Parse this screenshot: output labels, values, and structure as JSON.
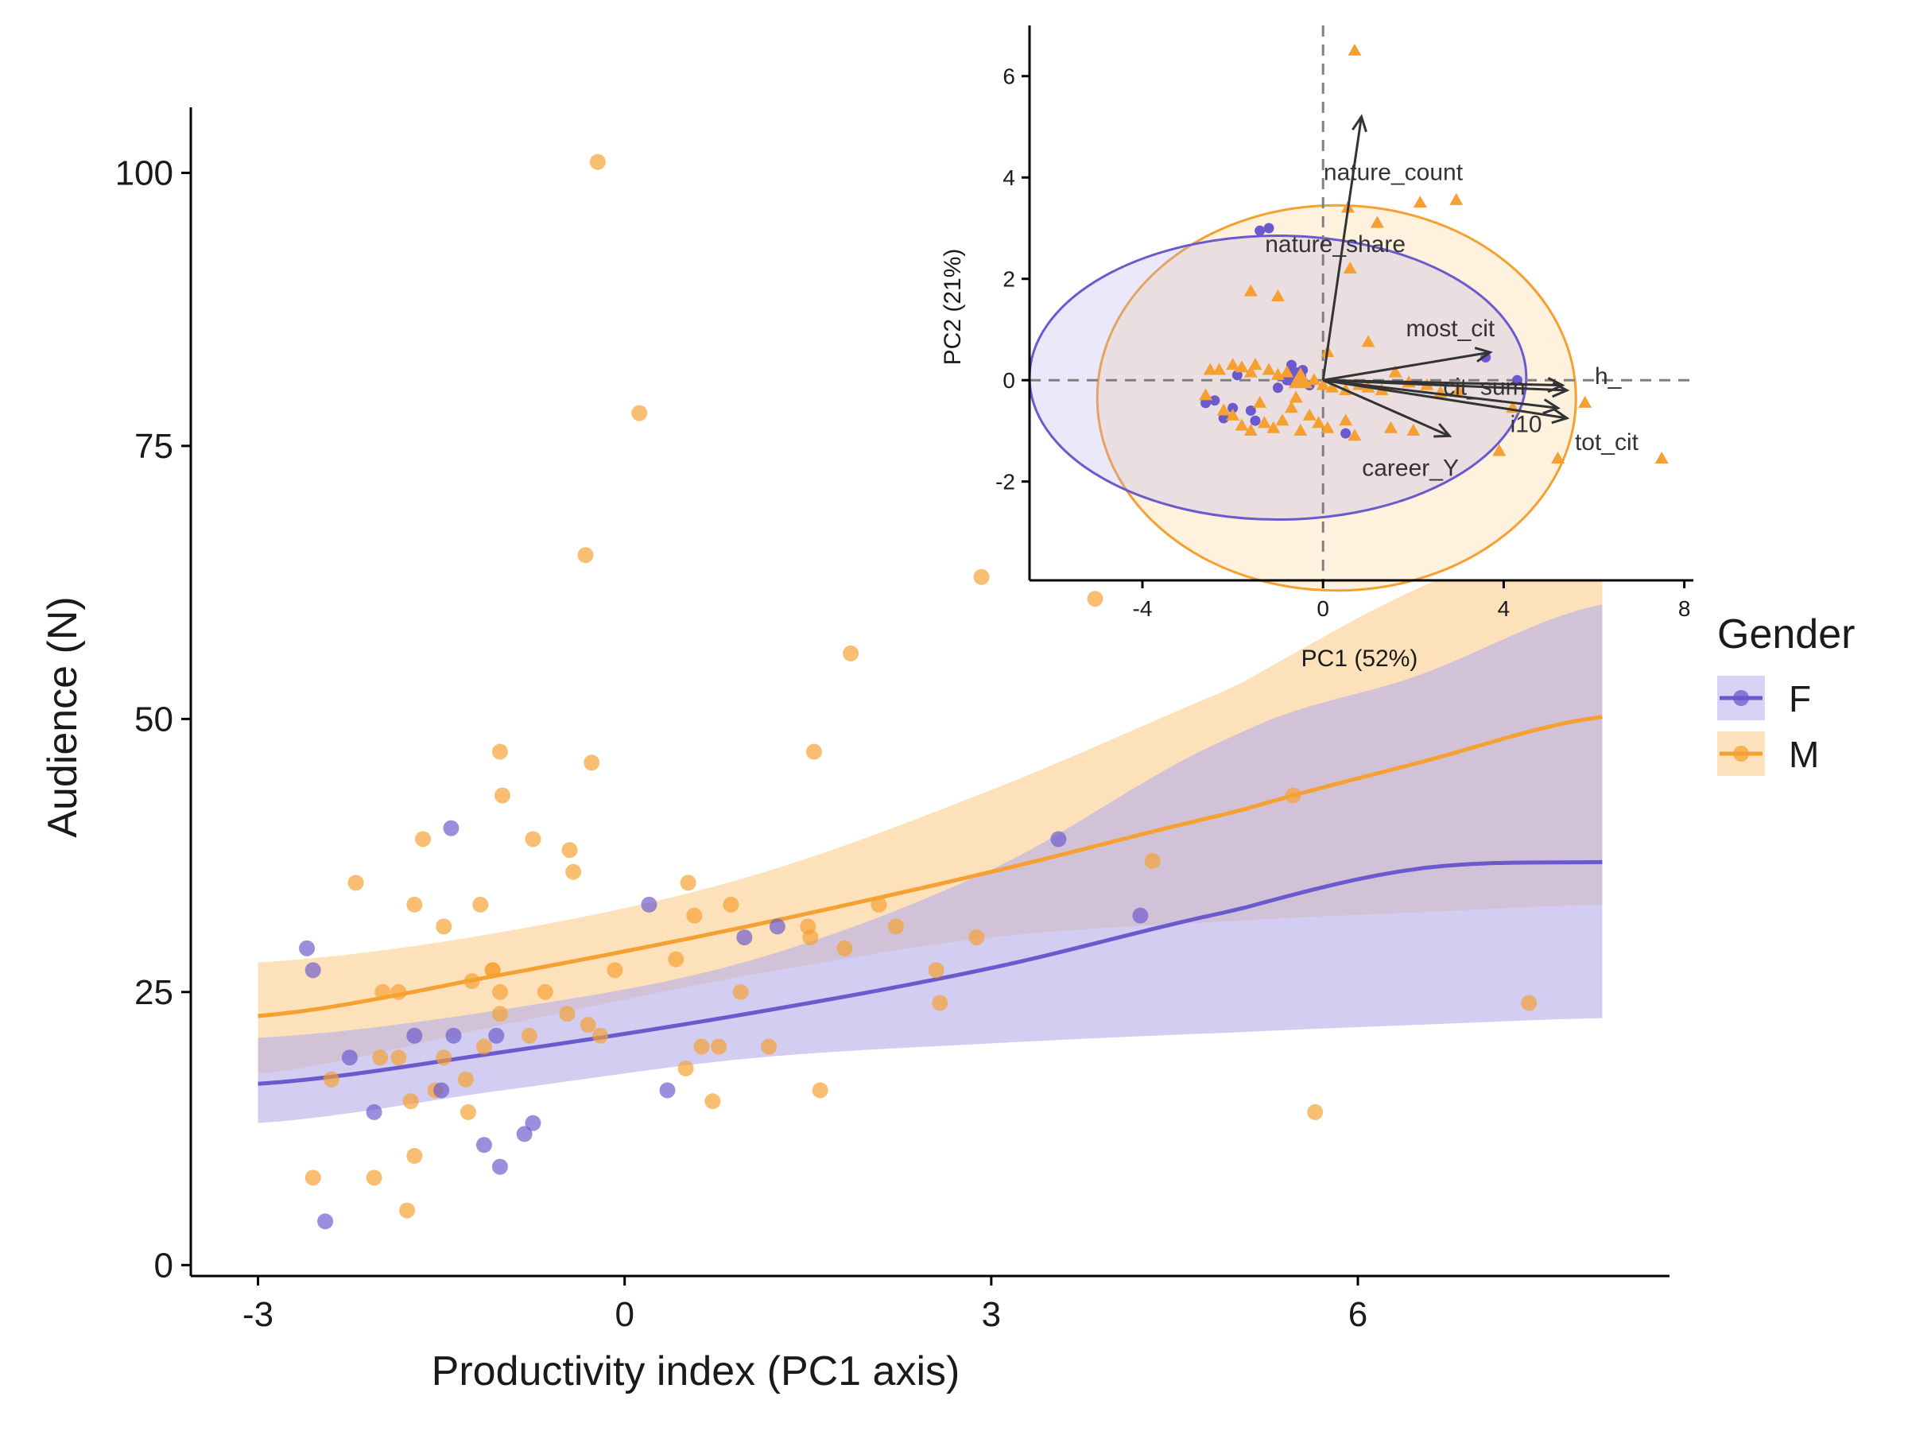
{
  "colors": {
    "female": "#6a5acd",
    "male": "#f5a030",
    "female_band": "#b8aee8",
    "male_band": "#fbcf92",
    "axis": "#000000",
    "text": "#1a1a1a",
    "arrow": "#333333",
    "refline": "#808080"
  },
  "legend": {
    "title": "Gender",
    "items": [
      {
        "key": "F",
        "label": "F"
      },
      {
        "key": "M",
        "label": "M"
      }
    ]
  },
  "chart_data": [
    {
      "type": "scatter",
      "xlabel": "Productivity index (PC1 axis)",
      "ylabel": "Audience (N)",
      "xlim": [
        -3.55,
        8.55
      ],
      "ylim": [
        -1,
        106
      ],
      "x_ticks": [
        -3,
        0,
        3,
        6
      ],
      "y_ticks": [
        0,
        25,
        50,
        75,
        100
      ],
      "grid": false,
      "legend_position": "right",
      "fit": "exponential trend with confidence band",
      "series": [
        {
          "name": "F",
          "points": [
            [
              -2.6,
              29
            ],
            [
              -2.55,
              27
            ],
            [
              -2.45,
              4
            ],
            [
              -2.25,
              19
            ],
            [
              -2.05,
              14
            ],
            [
              -1.72,
              21
            ],
            [
              -1.5,
              16
            ],
            [
              -1.42,
              40
            ],
            [
              -1.4,
              21
            ],
            [
              -1.15,
              11
            ],
            [
              -1.05,
              21
            ],
            [
              -1.02,
              9
            ],
            [
              -0.82,
              12
            ],
            [
              -0.75,
              13
            ],
            [
              0.2,
              33
            ],
            [
              0.35,
              16
            ],
            [
              0.98,
              30
            ],
            [
              1.25,
              31
            ],
            [
              3.55,
              39
            ],
            [
              4.22,
              32
            ]
          ],
          "fit_x": [
            -3,
            -1,
            1,
            3,
            5,
            6.5,
            8
          ],
          "fit_y": [
            16.6,
            19.5,
            23.0,
            27.2,
            32.5,
            36.3,
            36.9
          ],
          "band_lower": [
            13.0,
            16.0,
            18.9,
            20.3,
            21.3,
            22.0,
            22.6
          ],
          "band_upper": [
            20.8,
            23.4,
            27.8,
            36.2,
            48.5,
            54.0,
            60.5
          ]
        },
        {
          "name": "M",
          "points": [
            [
              -2.55,
              8
            ],
            [
              -2.4,
              17
            ],
            [
              -2.2,
              35
            ],
            [
              -2.05,
              8
            ],
            [
              -2.0,
              19
            ],
            [
              -1.98,
              25
            ],
            [
              -1.85,
              25
            ],
            [
              -1.85,
              19
            ],
            [
              -1.78,
              5
            ],
            [
              -1.75,
              15
            ],
            [
              -1.72,
              10
            ],
            [
              -1.72,
              33
            ],
            [
              -1.65,
              39
            ],
            [
              -1.55,
              16
            ],
            [
              -1.48,
              31
            ],
            [
              -1.48,
              19
            ],
            [
              -1.3,
              17
            ],
            [
              -1.28,
              14
            ],
            [
              -1.25,
              26
            ],
            [
              -1.18,
              33
            ],
            [
              -1.15,
              20
            ],
            [
              -1.08,
              27
            ],
            [
              -1.08,
              27
            ],
            [
              -1.02,
              25
            ],
            [
              -1.02,
              23
            ],
            [
              -1.02,
              47
            ],
            [
              -1.0,
              43
            ],
            [
              -0.78,
              21
            ],
            [
              -0.75,
              39
            ],
            [
              -0.65,
              25
            ],
            [
              -0.47,
              23
            ],
            [
              -0.45,
              38
            ],
            [
              -0.42,
              36
            ],
            [
              -0.32,
              65
            ],
            [
              -0.3,
              22
            ],
            [
              -0.27,
              46
            ],
            [
              -0.22,
              101
            ],
            [
              -0.2,
              21
            ],
            [
              -0.08,
              27
            ],
            [
              0.12,
              78
            ],
            [
              0.42,
              28
            ],
            [
              0.5,
              18
            ],
            [
              0.52,
              35
            ],
            [
              0.57,
              32
            ],
            [
              0.63,
              20
            ],
            [
              0.72,
              15
            ],
            [
              0.77,
              20
            ],
            [
              0.87,
              33
            ],
            [
              0.95,
              25
            ],
            [
              1.18,
              20
            ],
            [
              1.5,
              31
            ],
            [
              1.52,
              30
            ],
            [
              1.55,
              47
            ],
            [
              1.6,
              16
            ],
            [
              1.8,
              29
            ],
            [
              1.85,
              56
            ],
            [
              2.08,
              33
            ],
            [
              2.22,
              31
            ],
            [
              2.55,
              27
            ],
            [
              2.58,
              24
            ],
            [
              2.88,
              30
            ],
            [
              2.92,
              63
            ],
            [
              3.85,
              61
            ],
            [
              4.32,
              37
            ],
            [
              5.47,
              43
            ],
            [
              5.65,
              14
            ],
            [
              7.4,
              24
            ]
          ],
          "fit_x": [
            -3,
            -1,
            1,
            3,
            5,
            6.5,
            8
          ],
          "fit_y": [
            22.8,
            26.6,
            31.0,
            36.0,
            41.5,
            46.0,
            50.2
          ],
          "band_lower": [
            17.5,
            22.0,
            26.5,
            30.0,
            31.5,
            32.3,
            33.0
          ],
          "band_upper": [
            27.7,
            30.5,
            35.5,
            43.5,
            53.0,
            62.0,
            68.0
          ]
        }
      ]
    },
    {
      "type": "scatter",
      "subtype": "pca-biplot",
      "xlabel": "PC1 (52%)",
      "ylabel": "PC2 (21%)",
      "xlim": [
        -6.5,
        8.2
      ],
      "ylim": [
        -3.95,
        7.0
      ],
      "x_ticks": [
        -4,
        0,
        4,
        8
      ],
      "y_ticks": [
        -2,
        0,
        2,
        4,
        6
      ],
      "grid": false,
      "reference_lines": {
        "x": 0,
        "y": 0,
        "style": "dashed"
      },
      "loadings": [
        {
          "name": "nature_count",
          "x": 0.85,
          "y": 5.2
        },
        {
          "name": "nature_share",
          "x": 0.8,
          "y": 4.6
        },
        {
          "name": "most_cit",
          "x": 3.7,
          "y": 0.55
        },
        {
          "name": "h_",
          "x": 5.4,
          "y": -0.2
        },
        {
          "name": "tot_cit",
          "x": 5.4,
          "y": -0.75
        },
        {
          "name": "i10",
          "x": 5.2,
          "y": -0.55
        },
        {
          "name": "cit_sum",
          "x": 5.3,
          "y": -0.1
        },
        {
          "name": "career_Y",
          "x": 2.8,
          "y": -1.1
        }
      ],
      "ellipses": [
        {
          "group": "F",
          "center": [
            -1.0,
            0.05
          ],
          "rx": 5.5,
          "ry": 2.8
        },
        {
          "group": "M",
          "center": [
            0.3,
            -0.35
          ],
          "rx": 5.3,
          "ry": 3.8
        }
      ],
      "series": [
        {
          "name": "F",
          "marker": "circle",
          "centroid": [
            -0.6,
            0.05
          ],
          "points": [
            [
              -1.4,
              2.95
            ],
            [
              -1.2,
              3.0
            ],
            [
              -2.6,
              -0.45
            ],
            [
              -2.4,
              -0.4
            ],
            [
              -2.0,
              -0.55
            ],
            [
              -1.5,
              -0.8
            ],
            [
              -1.9,
              0.1
            ],
            [
              -1.0,
              -0.15
            ],
            [
              -0.7,
              0.3
            ],
            [
              -0.45,
              0.2
            ],
            [
              -0.3,
              -0.1
            ],
            [
              0.5,
              -1.05
            ],
            [
              -2.2,
              -0.75
            ],
            [
              -1.6,
              -0.6
            ],
            [
              -0.8,
              0.0
            ],
            [
              3.6,
              0.45
            ],
            [
              4.3,
              0.0
            ]
          ]
        },
        {
          "name": "M",
          "marker": "triangle",
          "centroid": [
            -0.5,
            0.0
          ],
          "points": [
            [
              0.7,
              6.5
            ],
            [
              0.55,
              3.4
            ],
            [
              1.2,
              3.1
            ],
            [
              2.15,
              3.5
            ],
            [
              2.95,
              3.55
            ],
            [
              0.6,
              2.2
            ],
            [
              -1.6,
              1.75
            ],
            [
              -1.0,
              1.65
            ],
            [
              1.0,
              0.75
            ],
            [
              0.1,
              0.55
            ],
            [
              -2.5,
              0.2
            ],
            [
              -2.3,
              0.2
            ],
            [
              -2.0,
              0.3
            ],
            [
              -1.8,
              0.25
            ],
            [
              -1.6,
              0.15
            ],
            [
              -1.5,
              0.3
            ],
            [
              -1.2,
              0.2
            ],
            [
              -1.0,
              0.1
            ],
            [
              -0.8,
              0.15
            ],
            [
              -0.5,
              0.05
            ],
            [
              -0.2,
              0.0
            ],
            [
              0.0,
              -0.1
            ],
            [
              0.2,
              -0.15
            ],
            [
              0.5,
              -0.2
            ],
            [
              0.8,
              -0.1
            ],
            [
              1.0,
              -0.15
            ],
            [
              1.3,
              -0.2
            ],
            [
              1.6,
              0.15
            ],
            [
              1.9,
              -0.05
            ],
            [
              2.3,
              -0.1
            ],
            [
              2.6,
              -0.25
            ],
            [
              3.0,
              -0.2
            ],
            [
              -2.6,
              -0.3
            ],
            [
              -2.2,
              -0.6
            ],
            [
              -2.0,
              -0.7
            ],
            [
              -1.8,
              -0.9
            ],
            [
              -1.6,
              -1.0
            ],
            [
              -1.3,
              -0.85
            ],
            [
              -1.1,
              -0.95
            ],
            [
              -0.9,
              -0.8
            ],
            [
              -0.7,
              -0.55
            ],
            [
              -0.5,
              -1.0
            ],
            [
              -0.3,
              -0.7
            ],
            [
              -0.1,
              -0.85
            ],
            [
              0.1,
              -0.95
            ],
            [
              0.5,
              -0.8
            ],
            [
              0.7,
              -1.1
            ],
            [
              1.5,
              -0.95
            ],
            [
              2.0,
              -1.0
            ],
            [
              -1.4,
              -0.45
            ],
            [
              -0.6,
              -0.35
            ],
            [
              4.2,
              -0.55
            ],
            [
              3.9,
              -1.4
            ],
            [
              5.2,
              -1.55
            ],
            [
              5.8,
              -0.45
            ],
            [
              7.5,
              -1.55
            ]
          ]
        }
      ]
    }
  ]
}
